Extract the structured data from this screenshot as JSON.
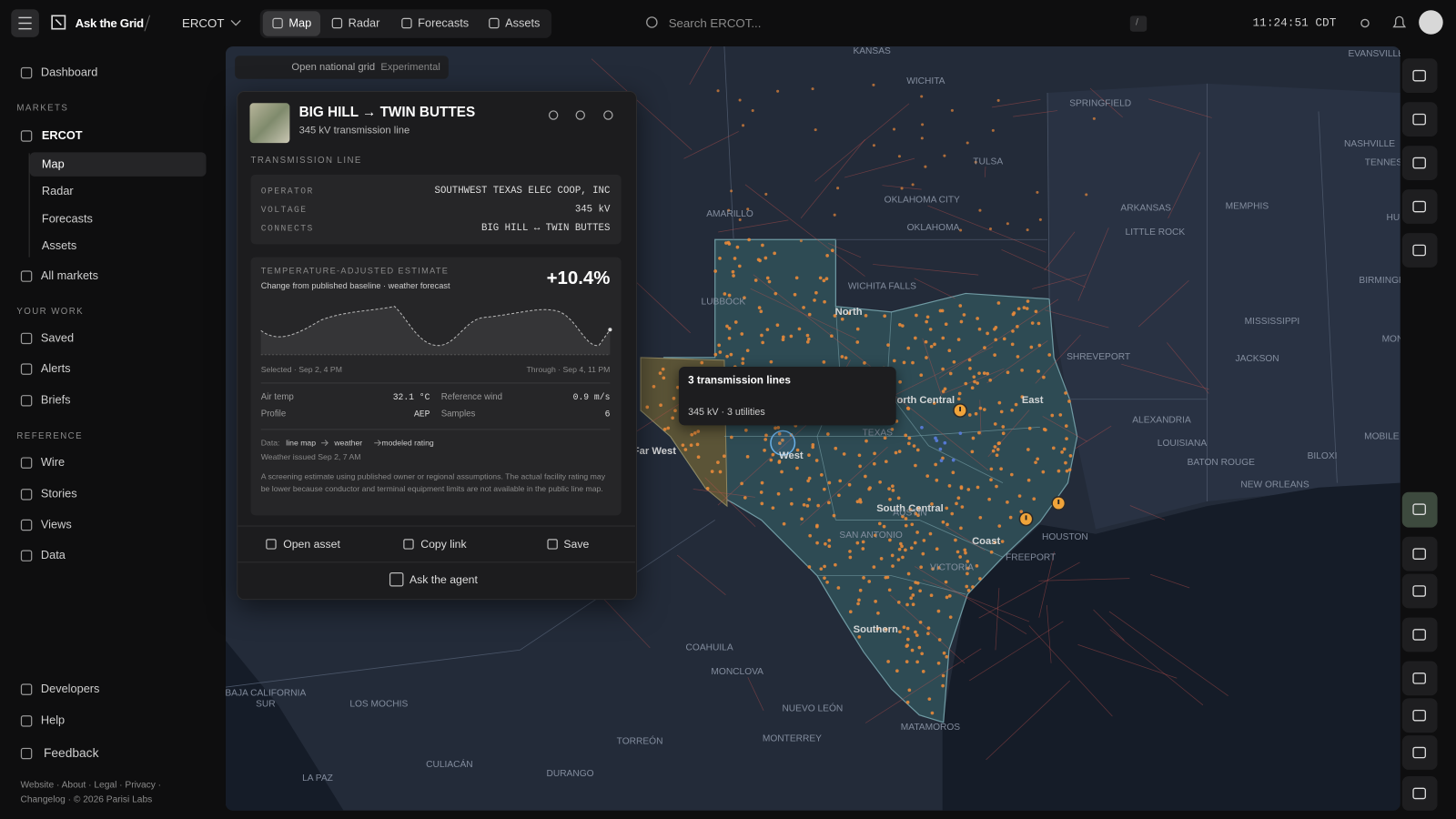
{
  "topbar": {
    "brand": "Ask the Grid",
    "market": "ERCOT",
    "tabs": [
      "Map",
      "Radar",
      "Forecasts",
      "Assets"
    ],
    "search": "Search ERCOT...",
    "shortcut": "/",
    "clock": "11:24:51 CDT"
  },
  "sidebar": {
    "dashboard": "Dashboard",
    "markets": {
      "title": "MARKETS",
      "market": "ERCOT",
      "sub": [
        "Map",
        "Radar",
        "Forecasts",
        "Assets"
      ],
      "all": "All markets"
    },
    "work": {
      "title": "YOUR WORK",
      "items": [
        "Saved",
        "Alerts",
        "Briefs"
      ]
    },
    "reference": {
      "title": "REFERENCE",
      "items": [
        "Wire",
        "Stories",
        "Views",
        "Data"
      ]
    },
    "bottom": [
      "Developers",
      "Help",
      "Feedback"
    ],
    "footer": [
      "Website · About · Legal · Privacy ·",
      "Changelog · © 2026 Parisi Labs"
    ]
  },
  "map": {
    "toolbar": "Open national grid",
    "badge": "Experimental",
    "tooltip": {
      "title": "3 transmission lines",
      "detail": "345 kV · 3 utilities"
    },
    "labels": [
      "KANSAS",
      "WICHITA",
      "SPRINGFIELD",
      "EVANSVILLE",
      "NASHVILLE",
      "TENNES",
      "TULSA",
      "OKLAHOMA CITY",
      "ARKANSAS",
      "MEMPHIS",
      "HUNTSVI",
      "OKLAHOMA",
      "LITTLE ROCK",
      "AMARILLO",
      "BIRMINGHAM",
      "MISSISSIPPI",
      "LUBBOCK",
      "North",
      "WICHITA FALLS",
      "SHREVEPORT",
      "JACKSON",
      "MONTGOMERY",
      "North Central",
      "East",
      "ALEXANDRIA",
      "LOUISIANA",
      "MOBILE",
      "TEXAS",
      "Far West",
      "West",
      "BATON ROUGE",
      "BILOXI",
      "NEW ORLEANS",
      "South Central",
      "AUSTIN",
      "SAN ANTONIO",
      "HOUSTON",
      "Coast",
      "FREEPORT",
      "VICTORIA",
      "Southern",
      "COAHUILA",
      "MONCLOVA",
      "BAJA CALIFORNIA",
      "SUR",
      "LOS MOCHIS",
      "NUEVO LEÓN",
      "MATAMOROS",
      "MONTERREY",
      "TORREÓN",
      "CULIACÁN",
      "DURANGO",
      "LA PAZ"
    ]
  },
  "panel": {
    "title": "BIG HILL → TWIN BUTTES",
    "subtitle": "345 kV transmission line",
    "section": "TRANSMISSION LINE",
    "fields": [
      {
        "label": "OPERATOR",
        "value": "SOUTHWEST TEXAS ELEC COOP, INC"
      },
      {
        "label": "VOLTAGE",
        "value": "345 kV"
      },
      {
        "label": "CONNECTS",
        "value": "BIG HILL ↔ TWIN BUTTES"
      }
    ],
    "estimate": {
      "label": "TEMPERATURE-ADJUSTED ESTIMATE",
      "description": "Change from published baseline · weather forecast",
      "value": "+10.4%",
      "start": "Selected · Sep 2, 4 PM",
      "end": "Through · Sep 4, 11 PM"
    },
    "stats": [
      {
        "label": "Air temp",
        "value": "32.1 °C"
      },
      {
        "label": "Reference wind",
        "value": "0.9 m/s"
      },
      {
        "label": "Profile",
        "value": "AEP"
      },
      {
        "label": "Samples",
        "value": "6"
      }
    ],
    "chain": {
      "label": "Data:",
      "steps": [
        "line map",
        "weather",
        "modeled rating"
      ]
    },
    "issued": "Weather issued Sep 2, 7 AM",
    "disclaimer": "A screening estimate using published owner or regional assumptions. The actual facility rating may be lower because conductor and terminal equipment limits are not available in the public line map.",
    "actions": [
      "Open asset",
      "Copy link",
      "Save"
    ],
    "agent": "Ask the agent"
  }
}
